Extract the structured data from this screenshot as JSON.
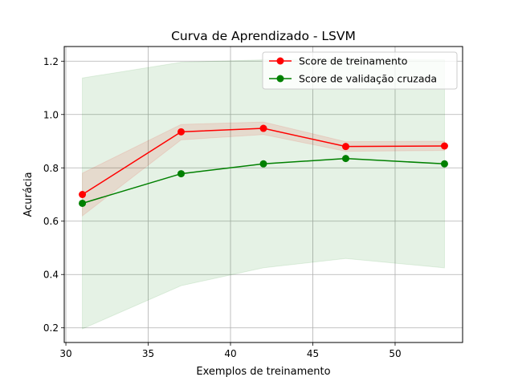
{
  "chart_data": {
    "type": "line",
    "title": "Curva de Aprendizado - LSVM",
    "xlabel": "Exemplos de treinamento",
    "ylabel": "Acurácia",
    "xlim": [
      29.9,
      54.1
    ],
    "ylim": [
      0.145,
      1.255
    ],
    "xticks": [
      30,
      35,
      40,
      45,
      50
    ],
    "yticks": [
      0.2,
      0.4,
      0.6,
      0.8,
      1.0,
      1.2
    ],
    "xtick_labels": [
      "30",
      "35",
      "40",
      "45",
      "50"
    ],
    "ytick_labels": [
      "0.2",
      "0.4",
      "0.6",
      "0.8",
      "1.0",
      "1.2"
    ],
    "grid": true,
    "legend_position": "top-right",
    "x": [
      31,
      37,
      42,
      47,
      53
    ],
    "series": [
      {
        "name": "Score de treinamento",
        "color": "#ff0000",
        "values": [
          0.7,
          0.935,
          0.948,
          0.88,
          0.882
        ],
        "band_lower": [
          0.62,
          0.905,
          0.925,
          0.862,
          0.865
        ],
        "band_upper": [
          0.78,
          0.963,
          0.972,
          0.898,
          0.9
        ]
      },
      {
        "name": "Score de validação cruzada",
        "color": "#008000",
        "values": [
          0.667,
          0.778,
          0.815,
          0.835,
          0.815
        ],
        "band_lower": [
          0.196,
          0.358,
          0.425,
          0.46,
          0.425
        ],
        "band_upper": [
          1.137,
          1.196,
          1.205,
          1.21,
          1.205
        ]
      }
    ]
  }
}
